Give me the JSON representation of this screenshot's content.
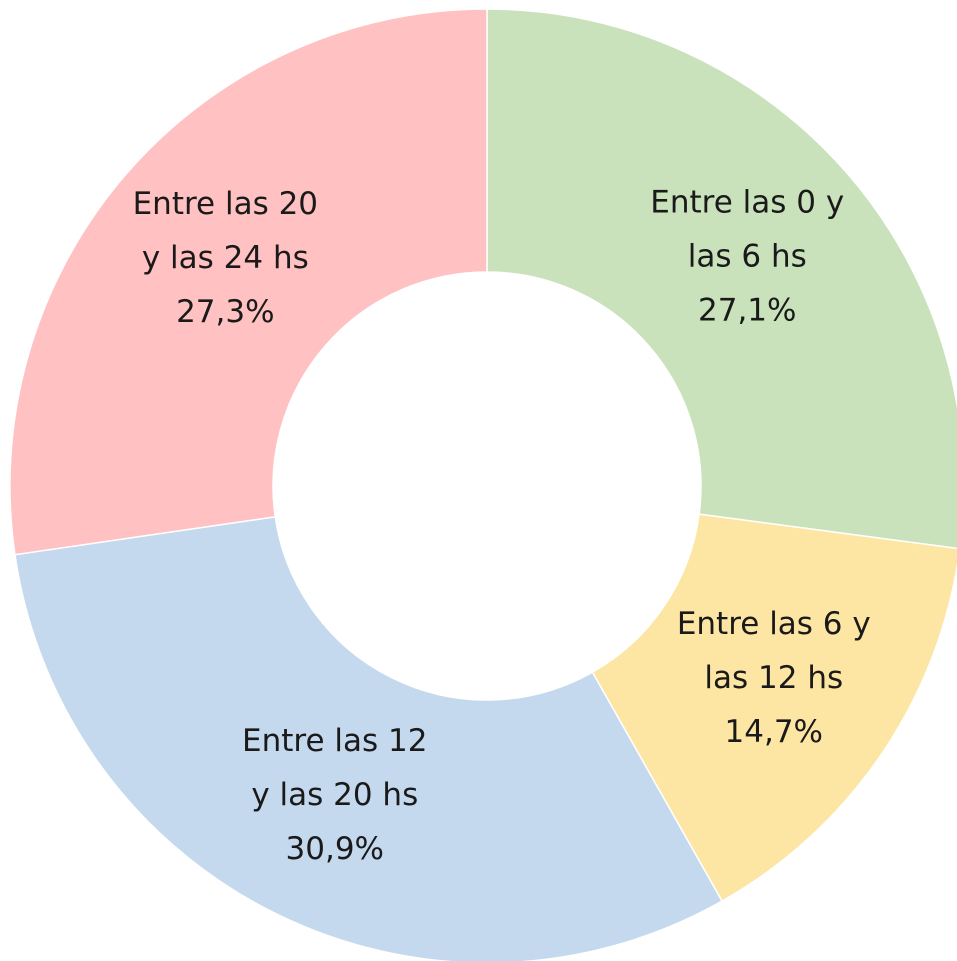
{
  "chart_data": {
    "type": "donut",
    "categories": [
      [
        "Entre las 0 y",
        "las 6 hs"
      ],
      [
        "Entre las 6 y",
        "las 12 hs"
      ],
      [
        "Entre las 12",
        "y las 20 hs"
      ],
      [
        "Entre las 20",
        "y las 24 hs"
      ]
    ],
    "values": [
      27.1,
      14.7,
      30.9,
      27.3
    ],
    "value_labels": [
      "27,1%",
      "14,7%",
      "30,9%",
      "27,3%"
    ],
    "colors": [
      "#c9e2bb",
      "#fde5a3",
      "#c5d9ee",
      "#ffc1c1"
    ]
  }
}
